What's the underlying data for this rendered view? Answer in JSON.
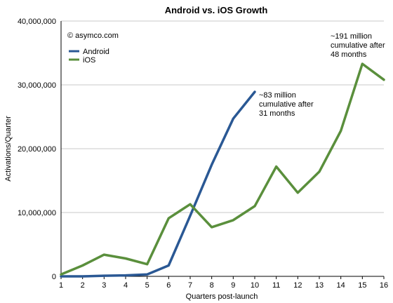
{
  "chart_data": {
    "type": "line",
    "title": "Android vs. iOS Growth",
    "xlabel": "Quarters post-launch",
    "ylabel": "Activations/Quarter",
    "x": [
      1,
      2,
      3,
      4,
      5,
      6,
      7,
      8,
      9,
      10,
      11,
      12,
      13,
      14,
      15,
      16
    ],
    "xlim": [
      1,
      16
    ],
    "ylim": [
      0,
      40000000
    ],
    "y_ticks": [
      "0",
      "10,000,000",
      "20,000,000",
      "30,000,000",
      "40,000,000"
    ],
    "y_tick_values": [
      0,
      10000000,
      20000000,
      30000000,
      40000000
    ],
    "grid": "horizontal",
    "legend": "top-left",
    "series": [
      {
        "name": "Android",
        "color": "#2a5894",
        "values": [
          0,
          0,
          100000,
          150000,
          300000,
          1700000,
          9500000,
          17500000,
          24700000,
          28900000,
          null,
          null,
          null,
          null,
          null,
          null
        ]
      },
      {
        "name": "iOS",
        "color": "#5a8f3c",
        "values": [
          300000,
          1700000,
          3400000,
          2800000,
          1900000,
          9100000,
          11300000,
          7700000,
          8800000,
          11000000,
          17200000,
          13100000,
          16400000,
          22800000,
          33300000,
          30800000
        ]
      }
    ],
    "annotations": [
      {
        "text": "© asymco.com"
      },
      {
        "text": "~83 million\ncumulative after\n31 months"
      },
      {
        "text": "~191 million\ncumulative after\n48 months"
      }
    ]
  }
}
